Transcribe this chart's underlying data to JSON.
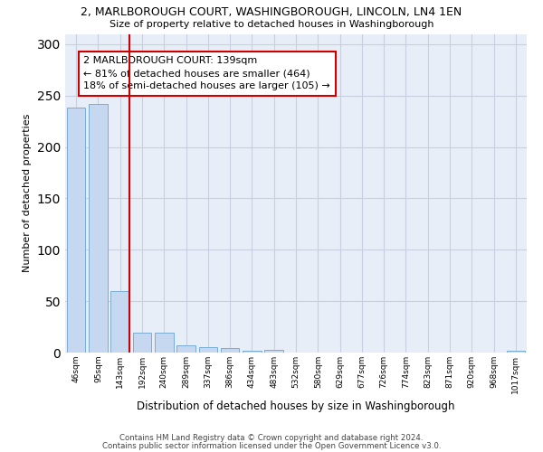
{
  "title": "2, MARLBOROUGH COURT, WASHINGBOROUGH, LINCOLN, LN4 1EN",
  "subtitle": "Size of property relative to detached houses in Washingborough",
  "xlabel": "Distribution of detached houses by size in Washingborough",
  "ylabel": "Number of detached properties",
  "bar_labels": [
    "46sqm",
    "95sqm",
    "143sqm",
    "192sqm",
    "240sqm",
    "289sqm",
    "337sqm",
    "386sqm",
    "434sqm",
    "483sqm",
    "532sqm",
    "580sqm",
    "629sqm",
    "677sqm",
    "726sqm",
    "774sqm",
    "823sqm",
    "871sqm",
    "920sqm",
    "968sqm",
    "1017sqm"
  ],
  "bar_values": [
    238,
    242,
    60,
    19,
    19,
    7,
    5,
    4,
    2,
    3,
    0,
    0,
    0,
    0,
    0,
    0,
    0,
    0,
    0,
    0,
    2
  ],
  "bar_color": "#c5d8f0",
  "bar_edge_color": "#7aadd4",
  "vline_color": "#cc0000",
  "annotation_text": "2 MARLBOROUGH COURT: 139sqm\n← 81% of detached houses are smaller (464)\n18% of semi-detached houses are larger (105) →",
  "annotation_box_color": "#ffffff",
  "annotation_box_edge": "#cc0000",
  "ylim": [
    0,
    310
  ],
  "yticks": [
    0,
    50,
    100,
    150,
    200,
    250,
    300
  ],
  "grid_color": "#c8d0e0",
  "bg_color": "#e8eef8",
  "footer1": "Contains HM Land Registry data © Crown copyright and database right 2024.",
  "footer2": "Contains public sector information licensed under the Open Government Licence v3.0."
}
